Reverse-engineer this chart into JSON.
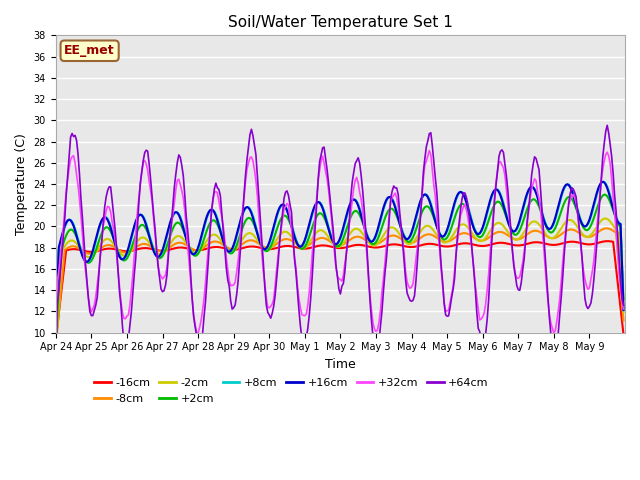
{
  "title": "Soil/Water Temperature Set 1",
  "xlabel": "Time",
  "ylabel": "Temperature (C)",
  "ylim": [
    10,
    38
  ],
  "yticks": [
    10,
    12,
    14,
    16,
    18,
    20,
    22,
    24,
    26,
    28,
    30,
    32,
    34,
    36,
    38
  ],
  "x_labels": [
    "Apr 24",
    "Apr 25",
    "Apr 26",
    "Apr 27",
    "Apr 28",
    "Apr 29",
    "Apr 30",
    "May 1",
    "May 2",
    "May 3",
    "May 4",
    "May 5",
    "May 6",
    "May 7",
    "May 8",
    "May 9"
  ],
  "annotation_text": "EE_met",
  "annotation_box_color": "#FFFFCC",
  "annotation_border_color": "#996633",
  "annotation_text_color": "#990000",
  "plot_bg_color": "#E8E8E8",
  "grid_color": "#FFFFFF",
  "series_names": [
    "-16cm",
    "-8cm",
    "-2cm",
    "+2cm",
    "+8cm",
    "+16cm",
    "+32cm",
    "+64cm"
  ],
  "series_colors": {
    "-16cm": "#FF0000",
    "-8cm": "#FF8C00",
    "-2cm": "#CCCC00",
    "+2cm": "#00BB00",
    "+8cm": "#00CCCC",
    "+16cm": "#0000CC",
    "+32cm": "#FF44FF",
    "+64cm": "#8800CC"
  },
  "series_lw": {
    "-16cm": 1.5,
    "-8cm": 1.5,
    "-2cm": 1.5,
    "+2cm": 1.5,
    "+8cm": 1.5,
    "+16cm": 1.5,
    "+32cm": 1.2,
    "+64cm": 1.2
  },
  "n_days": 16,
  "points_per_day": 24
}
